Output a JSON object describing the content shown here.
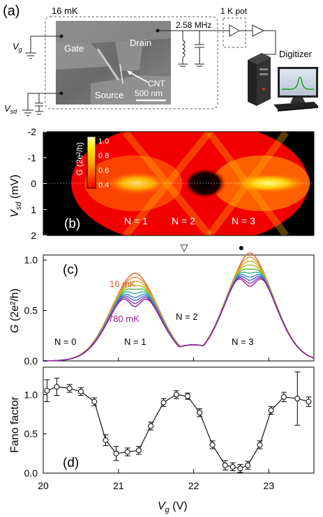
{
  "panel_a": {
    "label": "(a)",
    "temp_label": "16 mK",
    "gate_label": "Gate",
    "drain_label": "Drain",
    "source_label": "Source",
    "cnt_label": "CNT",
    "scalebar_label": "500 nm",
    "freq_label": "2.58 MHz",
    "pot_label": "1 K pot",
    "digitizer_label": "Digitizer",
    "vg_main": "V",
    "vg_sub": "g",
    "vsd_main": "V",
    "vsd_sub": "sd"
  },
  "panel_b": {
    "label": "(b)",
    "colorbar_title_html": "G (2e²/h)",
    "colorbar_ticks": [
      "1.0",
      "0.8",
      "0.6",
      "0.4"
    ],
    "y_ticks": [
      "-2",
      "-1",
      "0",
      "1",
      "2"
    ],
    "ylabel_main": "V",
    "ylabel_sub": "sd",
    "ylabel_unit": " (mV)",
    "n1": "N = 1",
    "n2": "N = 2",
    "n3": "N = 3"
  },
  "panel_c": {
    "label": "(c)",
    "y_ticks": [
      "0.0",
      "0.5",
      "1.0"
    ],
    "ylabel_main": "G",
    "ylabel_unit": " (2e²/h)",
    "t_high": "16 mK",
    "t_low": "780 mK",
    "n0": "N = 0",
    "n1": "N = 1",
    "n2": "N = 2",
    "n3": "N = 3",
    "marker_open": "▽",
    "marker_filled": "●"
  },
  "chart_data": [
    {
      "type": "heatmap",
      "panel": "b",
      "x_range": [
        20,
        23.6
      ],
      "ylim": [
        2,
        -2
      ],
      "ylabel": "Vsd (mV)",
      "colorbar_range": [
        0.4,
        1.0
      ],
      "colorbar_label": "G (2e²/h)",
      "colors": {
        "low": "#ff0000",
        "high": "#ffffff",
        "outside": "#000000"
      }
    },
    {
      "type": "line",
      "panel": "c",
      "xlim": [
        20,
        23.6
      ],
      "ylim": [
        0,
        1.05
      ],
      "ylabel": "G (2e²/h)",
      "series": [
        {
          "name": "16 mK",
          "color": "#e0602a",
          "dip": 0.87
        },
        {
          "name": "",
          "color": "#e88a22",
          "dip": 0.83
        },
        {
          "name": "",
          "color": "#d8b020",
          "dip": 0.79
        },
        {
          "name": "",
          "color": "#a8c028",
          "dip": 0.75
        },
        {
          "name": "",
          "color": "#58b848",
          "dip": 0.71
        },
        {
          "name": "",
          "color": "#30b0a0",
          "dip": 0.67
        },
        {
          "name": "",
          "color": "#3090d0",
          "dip": 0.63
        },
        {
          "name": "",
          "color": "#5060d0",
          "dip": 0.6
        },
        {
          "name": "",
          "color": "#8040b8",
          "dip": 0.57
        },
        {
          "name": "780 mK",
          "color": "#a01898",
          "dip": 0.54
        }
      ]
    },
    {
      "type": "scatter",
      "panel": "d",
      "xlabel": "Vg (V)",
      "ylabel": "Fano factor",
      "xlim": [
        20,
        23.6
      ],
      "ylim": [
        0,
        1.35
      ],
      "x_ticks": [
        "20",
        "21",
        "22",
        "23"
      ],
      "y_ticks": [
        "0.0",
        "0.5",
        "1.0"
      ],
      "label": "(d)",
      "points": [
        {
          "x": 20.05,
          "y": 1.05,
          "err": 0.14
        },
        {
          "x": 20.18,
          "y": 1.1,
          "err": 0.11
        },
        {
          "x": 20.35,
          "y": 1.08,
          "err": 0.05
        },
        {
          "x": 20.5,
          "y": 1.04,
          "err": 0.05
        },
        {
          "x": 20.68,
          "y": 0.91,
          "err": 0.05
        },
        {
          "x": 20.83,
          "y": 0.42,
          "err": 0.07
        },
        {
          "x": 20.97,
          "y": 0.25,
          "err": 0.09
        },
        {
          "x": 21.12,
          "y": 0.27,
          "err": 0.05
        },
        {
          "x": 21.27,
          "y": 0.29,
          "err": 0.05
        },
        {
          "x": 21.43,
          "y": 0.6,
          "err": 0.05
        },
        {
          "x": 21.6,
          "y": 0.9,
          "err": 0.05
        },
        {
          "x": 21.77,
          "y": 1.0,
          "err": 0.05
        },
        {
          "x": 21.92,
          "y": 0.98,
          "err": 0.04
        },
        {
          "x": 22.08,
          "y": 0.77,
          "err": 0.05
        },
        {
          "x": 22.25,
          "y": 0.36,
          "err": 0.05
        },
        {
          "x": 22.42,
          "y": 0.1,
          "err": 0.06
        },
        {
          "x": 22.52,
          "y": 0.08,
          "err": 0.05
        },
        {
          "x": 22.62,
          "y": 0.06,
          "err": 0.05
        },
        {
          "x": 22.72,
          "y": 0.1,
          "err": 0.05
        },
        {
          "x": 22.88,
          "y": 0.36,
          "err": 0.05
        },
        {
          "x": 23.03,
          "y": 0.8,
          "err": 0.05
        },
        {
          "x": 23.2,
          "y": 0.97,
          "err": 0.06
        },
        {
          "x": 23.38,
          "y": 0.95,
          "err": 0.34
        },
        {
          "x": 23.53,
          "y": 0.91,
          "err": 0.06
        }
      ]
    }
  ]
}
